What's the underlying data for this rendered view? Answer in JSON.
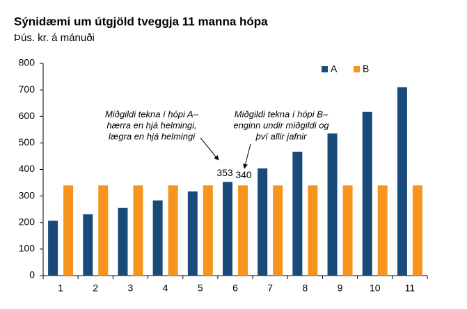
{
  "chart_data": {
    "type": "bar",
    "title": "Sýnidæmi um útgjöld tveggja 11 manna hópa",
    "subtitle": "Þús. kr. á mánuði",
    "categories": [
      "1",
      "2",
      "3",
      "4",
      "5",
      "6",
      "7",
      "8",
      "9",
      "10",
      "11"
    ],
    "series": [
      {
        "name": "A",
        "color": "#1a4a7a",
        "values": [
          207,
          231,
          255,
          283,
          317,
          353,
          404,
          467,
          536,
          617,
          710
        ]
      },
      {
        "name": "B",
        "color": "#f7941d",
        "values": [
          340,
          340,
          340,
          340,
          340,
          340,
          340,
          340,
          340,
          340,
          340
        ]
      }
    ],
    "ylim": [
      0,
      800
    ],
    "yticks": [
      0,
      100,
      200,
      300,
      400,
      500,
      600,
      700,
      800
    ],
    "grid": false,
    "legend": "top-right",
    "annotations": [
      {
        "lines": [
          "Miðgildi tekna  í hópi A–",
          "hærra en hjá helmingi,",
          "lægra en hjá helmingi"
        ],
        "color": "#1a4a7a"
      },
      {
        "lines": [
          "Miðgildi tekna  í hópi B–",
          "enginn undir miðgildi og",
          "því allir jafnir"
        ],
        "color": "#f7941d"
      }
    ]
  }
}
